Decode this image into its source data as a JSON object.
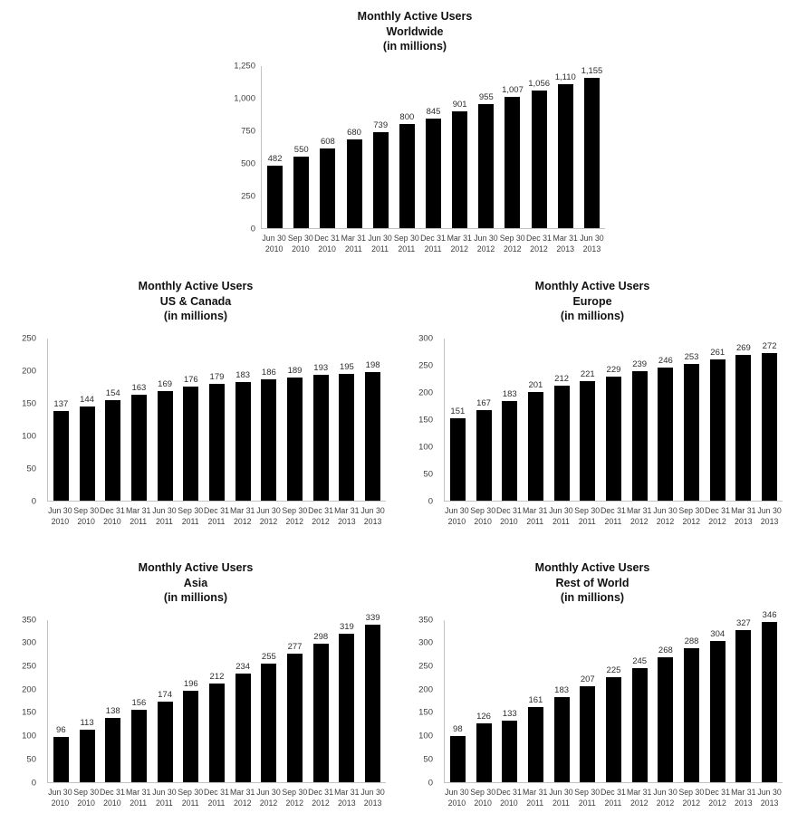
{
  "style": {
    "background": "#ffffff",
    "title_color": "#111111",
    "tick_label_color": "#3d3d3d",
    "data_label_color": "#2e2e2e",
    "axis_line_color": "#c2c2c2",
    "bar_color": "#000000"
  },
  "chart_data": [
    {
      "type": "bar",
      "title": "Monthly Active Users",
      "subtitle": "Worldwide",
      "unit_label": "(in millions)",
      "categories": [
        "Jun 30 2010",
        "Sep 30 2010",
        "Dec 31 2010",
        "Mar 31 2011",
        "Jun 30 2011",
        "Sep 30 2011",
        "Dec 31 2011",
        "Mar 31 2012",
        "Jun 30 2012",
        "Sep 30 2012",
        "Dec 31 2012",
        "Mar 31 2013",
        "Jun 30 2013"
      ],
      "values": [
        482,
        550,
        608,
        680,
        739,
        800,
        845,
        901,
        955,
        1007,
        1056,
        1110,
        1155
      ],
      "data_labels": [
        "482",
        "550",
        "608",
        "680",
        "739",
        "800",
        "845",
        "901",
        "955",
        "1,007",
        "1,056",
        "1,110",
        "1,155"
      ],
      "ylim": [
        0,
        1250
      ],
      "yticks": [
        "0",
        "250",
        "500",
        "750",
        "1,000",
        "1,250"
      ],
      "bar_color": "#000000",
      "grid": false,
      "legend": "none"
    },
    {
      "type": "bar",
      "title": "Monthly Active Users",
      "subtitle": "US & Canada",
      "unit_label": "(in millions)",
      "categories": [
        "Jun 30 2010",
        "Sep 30 2010",
        "Dec 31 2010",
        "Mar 31 2011",
        "Jun 30 2011",
        "Sep 30 2011",
        "Dec 31 2011",
        "Mar 31 2012",
        "Jun 30 2012",
        "Sep 30 2012",
        "Dec 31 2012",
        "Mar 31 2013",
        "Jun 30 2013"
      ],
      "values": [
        137,
        144,
        154,
        163,
        169,
        176,
        179,
        183,
        186,
        189,
        193,
        195,
        198
      ],
      "data_labels": [
        "137",
        "144",
        "154",
        "163",
        "169",
        "176",
        "179",
        "183",
        "186",
        "189",
        "193",
        "195",
        "198"
      ],
      "ylim": [
        0,
        250
      ],
      "yticks": [
        "0",
        "50",
        "100",
        "150",
        "200",
        "250"
      ],
      "bar_color": "#000000",
      "grid": false,
      "legend": "none"
    },
    {
      "type": "bar",
      "title": "Monthly Active Users",
      "subtitle": "Europe",
      "unit_label": "(in millions)",
      "categories": [
        "Jun 30 2010",
        "Sep 30 2010",
        "Dec 31 2010",
        "Mar 31 2011",
        "Jun 30 2011",
        "Sep 30 2011",
        "Dec 31 2011",
        "Mar 31 2012",
        "Jun 30 2012",
        "Sep 30 2012",
        "Dec 31 2012",
        "Mar 31 2013",
        "Jun 30 2013"
      ],
      "values": [
        151,
        167,
        183,
        201,
        212,
        221,
        229,
        239,
        246,
        253,
        261,
        269,
        272
      ],
      "data_labels": [
        "151",
        "167",
        "183",
        "201",
        "212",
        "221",
        "229",
        "239",
        "246",
        "253",
        "261",
        "269",
        "272"
      ],
      "ylim": [
        0,
        300
      ],
      "yticks": [
        "0",
        "50",
        "100",
        "150",
        "200",
        "250",
        "300"
      ],
      "bar_color": "#000000",
      "grid": false,
      "legend": "none"
    },
    {
      "type": "bar",
      "title": "Monthly Active Users",
      "subtitle": "Asia",
      "unit_label": "(in millions)",
      "categories": [
        "Jun 30 2010",
        "Sep 30 2010",
        "Dec 31 2010",
        "Mar 31 2011",
        "Jun 30 2011",
        "Sep 30 2011",
        "Dec 31 2011",
        "Mar 31 2012",
        "Jun 30 2012",
        "Sep 30 2012",
        "Dec 31 2012",
        "Mar 31 2013",
        "Jun 30 2013"
      ],
      "values": [
        96,
        113,
        138,
        156,
        174,
        196,
        212,
        234,
        255,
        277,
        298,
        319,
        339
      ],
      "data_labels": [
        "96",
        "113",
        "138",
        "156",
        "174",
        "196",
        "212",
        "234",
        "255",
        "277",
        "298",
        "319",
        "339"
      ],
      "ylim": [
        0,
        350
      ],
      "yticks": [
        "0",
        "50",
        "100",
        "150",
        "200",
        "250",
        "300",
        "350"
      ],
      "bar_color": "#000000",
      "grid": false,
      "legend": "none"
    },
    {
      "type": "bar",
      "title": "Monthly Active Users",
      "subtitle": "Rest of World",
      "unit_label": "(in millions)",
      "categories": [
        "Jun 30 2010",
        "Sep 30 2010",
        "Dec 31 2010",
        "Mar 31 2011",
        "Jun 30 2011",
        "Sep 30 2011",
        "Dec 31 2011",
        "Mar 31 2012",
        "Jun 30 2012",
        "Sep 30 2012",
        "Dec 31 2012",
        "Mar 31 2013",
        "Jun 30 2013"
      ],
      "values": [
        98,
        126,
        133,
        161,
        183,
        207,
        225,
        245,
        268,
        288,
        304,
        327,
        346
      ],
      "data_labels": [
        "98",
        "126",
        "133",
        "161",
        "183",
        "207",
        "225",
        "245",
        "268",
        "288",
        "304",
        "327",
        "346"
      ],
      "ylim": [
        0,
        350
      ],
      "yticks": [
        "0",
        "50",
        "100",
        "150",
        "200",
        "250",
        "300",
        "350"
      ],
      "bar_color": "#000000",
      "grid": false,
      "legend": "none"
    }
  ]
}
